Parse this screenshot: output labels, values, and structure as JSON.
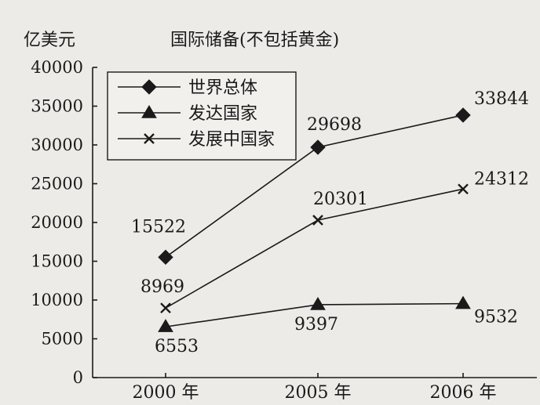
{
  "chart_data": {
    "type": "line",
    "title": "国际储备(不包括黄金)",
    "ylabel": "亿美元",
    "xlabel": "",
    "categories": [
      "2000 年",
      "2005 年",
      "2006 年"
    ],
    "ylim": [
      0,
      40000
    ],
    "yticks": [
      "0",
      "5000",
      "10000",
      "15000",
      "20000",
      "25000",
      "30000",
      "35000",
      "40000"
    ],
    "legend_position": "top-left",
    "grid": false,
    "series": [
      {
        "name": "世界总体",
        "marker": "diamond",
        "values": [
          15522,
          29698,
          33844
        ],
        "labels": [
          "15522",
          "29698",
          "33844"
        ]
      },
      {
        "name": "发达国家",
        "marker": "triangle",
        "values": [
          6553,
          9397,
          9532
        ],
        "labels": [
          "6553",
          "9397",
          "9532"
        ]
      },
      {
        "name": "发展中国家",
        "marker": "x",
        "values": [
          8969,
          20301,
          24312
        ],
        "labels": [
          "8969",
          "20301",
          "24312"
        ]
      }
    ]
  }
}
